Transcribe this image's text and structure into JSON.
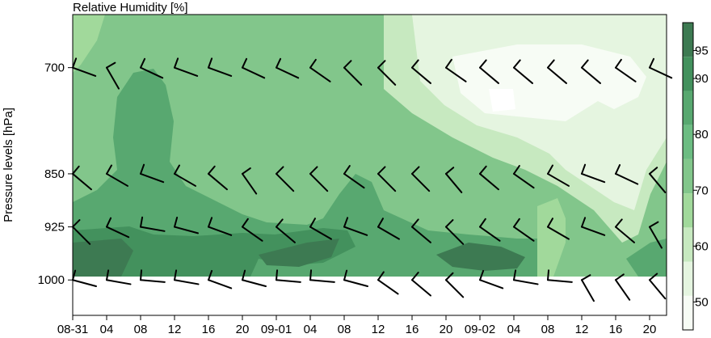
{
  "chart_data": {
    "type": "heatmap",
    "title": "Relative Humidity [%]",
    "xlabel": "",
    "ylabel": "Pressure levels [hPa]",
    "x_ticks": [
      "08-31",
      "04",
      "08",
      "12",
      "16",
      "20",
      "09-01",
      "04",
      "08",
      "12",
      "16",
      "20",
      "09-02",
      "04",
      "08",
      "12",
      "16",
      "20"
    ],
    "x_tick_hours": [
      0,
      4,
      8,
      12,
      16,
      20,
      24,
      28,
      32,
      36,
      40,
      44,
      48,
      52,
      56,
      60,
      64,
      68
    ],
    "x_range_hours": [
      0,
      70
    ],
    "y_ticks": [
      700,
      850,
      925,
      1000
    ],
    "y_range_hpa": [
      1050,
      625
    ],
    "pressure_levels": [
      700,
      850,
      925,
      1000
    ],
    "times_hours": [
      0,
      4,
      8,
      12,
      16,
      20,
      24,
      28,
      32,
      36,
      40,
      44,
      48,
      52,
      56,
      60,
      64,
      68
    ],
    "rh_values": [
      [
        78,
        80,
        86,
        84,
        80,
        80,
        78,
        76,
        74,
        72,
        70,
        66,
        62,
        60,
        56,
        52,
        50,
        52
      ],
      [
        84,
        88,
        92,
        86,
        82,
        82,
        82,
        84,
        88,
        86,
        80,
        76,
        72,
        66,
        60,
        66,
        64,
        66
      ],
      [
        90,
        92,
        90,
        88,
        86,
        84,
        86,
        86,
        90,
        90,
        88,
        86,
        84,
        80,
        78,
        74,
        70,
        80
      ],
      [
        92,
        94,
        88,
        86,
        84,
        88,
        90,
        92,
        88,
        90,
        90,
        92,
        94,
        90,
        86,
        78,
        80,
        88
      ]
    ],
    "colorbar": {
      "levels": [
        45,
        50,
        55,
        60,
        65,
        70,
        75,
        80,
        85,
        90,
        95,
        100
      ],
      "tick_labels": [
        "50",
        "60",
        "70",
        "80",
        "90",
        "95"
      ],
      "tick_values": [
        50,
        60,
        70,
        80,
        90,
        95
      ],
      "colors": [
        "#f7fcf5",
        "#e5f5e0",
        "#c7e9c0",
        "#a1d99b",
        "#82c68b",
        "#6cbc82",
        "#58a870",
        "#43915d",
        "#3d7a52"
      ]
    },
    "wind_barbs": "shown at each pressure level and each 4-hour time step"
  }
}
